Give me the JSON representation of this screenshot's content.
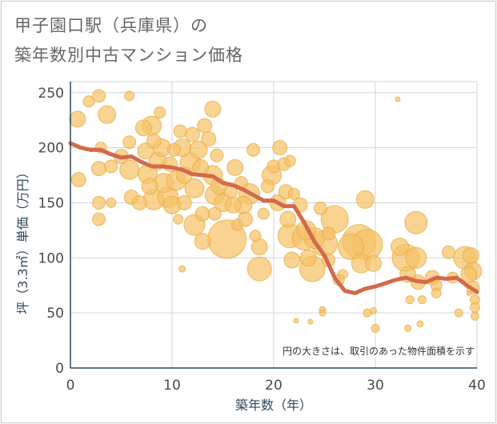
{
  "title_line1": "甲子園口駅（兵庫県）の",
  "title_line2": "築年数別中古マンション価格",
  "colors": {
    "bubble_fill": "#f5c266",
    "bubble_stroke": "#e9ad45",
    "line": "#d4694b",
    "grid": "#cfd6dc",
    "axis": "#2f4a5c"
  },
  "chart_data": {
    "type": "scatter",
    "xlabel": "築年数（年）",
    "ylabel": "坪（3.3㎡）単価（万円）",
    "xlim": [
      0,
      40
    ],
    "ylim": [
      0,
      260
    ],
    "xticks": [
      "0",
      "10",
      "20",
      "30",
      "40"
    ],
    "yticks": [
      "0",
      "50",
      "100",
      "150",
      "200",
      "250"
    ],
    "grid": true,
    "note": "円の大きさは、取引のあった物件面積を示す",
    "bubbles": [
      {
        "x": 0.7,
        "y": 226,
        "s": 10
      },
      {
        "x": 1.8,
        "y": 242,
        "s": 7
      },
      {
        "x": 2.8,
        "y": 247,
        "s": 8
      },
      {
        "x": 3.6,
        "y": 230,
        "s": 11
      },
      {
        "x": 5.8,
        "y": 247,
        "s": 6
      },
      {
        "x": 0.8,
        "y": 171,
        "s": 9
      },
      {
        "x": 2.8,
        "y": 181,
        "s": 9
      },
      {
        "x": 2.8,
        "y": 150,
        "s": 8
      },
      {
        "x": 2.8,
        "y": 135,
        "s": 8
      },
      {
        "x": 4.0,
        "y": 183,
        "s": 8
      },
      {
        "x": 4.0,
        "y": 150,
        "s": 6
      },
      {
        "x": 3.0,
        "y": 200,
        "s": 7
      },
      {
        "x": 5.0,
        "y": 192,
        "s": 9
      },
      {
        "x": 5.8,
        "y": 180,
        "s": 12
      },
      {
        "x": 5.8,
        "y": 205,
        "s": 8
      },
      {
        "x": 6.0,
        "y": 155,
        "s": 9
      },
      {
        "x": 6.8,
        "y": 150,
        "s": 9
      },
      {
        "x": 7.2,
        "y": 218,
        "s": 10
      },
      {
        "x": 7.4,
        "y": 197,
        "s": 10
      },
      {
        "x": 7.6,
        "y": 176,
        "s": 12
      },
      {
        "x": 8.0,
        "y": 220,
        "s": 12
      },
      {
        "x": 8.2,
        "y": 206,
        "s": 9
      },
      {
        "x": 7.8,
        "y": 165,
        "s": 10
      },
      {
        "x": 8.2,
        "y": 153,
        "s": 13
      },
      {
        "x": 8.6,
        "y": 188,
        "s": 11
      },
      {
        "x": 8.8,
        "y": 232,
        "s": 7
      },
      {
        "x": 9.0,
        "y": 200,
        "s": 11
      },
      {
        "x": 9.2,
        "y": 168,
        "s": 12
      },
      {
        "x": 9.6,
        "y": 155,
        "s": 13
      },
      {
        "x": 9.8,
        "y": 185,
        "s": 9
      },
      {
        "x": 10.0,
        "y": 148,
        "s": 11
      },
      {
        "x": 10.2,
        "y": 198,
        "s": 8
      },
      {
        "x": 10.4,
        "y": 170,
        "s": 12
      },
      {
        "x": 10.6,
        "y": 135,
        "s": 6
      },
      {
        "x": 10.8,
        "y": 215,
        "s": 8
      },
      {
        "x": 11.0,
        "y": 200,
        "s": 11
      },
      {
        "x": 11.2,
        "y": 175,
        "s": 10
      },
      {
        "x": 11.2,
        "y": 150,
        "s": 9
      },
      {
        "x": 11.0,
        "y": 90,
        "s": 4
      },
      {
        "x": 11.8,
        "y": 186,
        "s": 13
      },
      {
        "x": 12.0,
        "y": 212,
        "s": 9
      },
      {
        "x": 12.2,
        "y": 163,
        "s": 12
      },
      {
        "x": 12.2,
        "y": 130,
        "s": 13
      },
      {
        "x": 12.6,
        "y": 198,
        "s": 11
      },
      {
        "x": 12.8,
        "y": 182,
        "s": 10
      },
      {
        "x": 13.0,
        "y": 140,
        "s": 9
      },
      {
        "x": 13.0,
        "y": 115,
        "s": 10
      },
      {
        "x": 13.2,
        "y": 220,
        "s": 9
      },
      {
        "x": 13.6,
        "y": 208,
        "s": 9
      },
      {
        "x": 14.0,
        "y": 235,
        "s": 10
      },
      {
        "x": 14.0,
        "y": 175,
        "s": 12
      },
      {
        "x": 14.2,
        "y": 157,
        "s": 12
      },
      {
        "x": 14.2,
        "y": 140,
        "s": 8
      },
      {
        "x": 14.4,
        "y": 193,
        "s": 8
      },
      {
        "x": 14.6,
        "y": 165,
        "s": 10
      },
      {
        "x": 15.0,
        "y": 150,
        "s": 11
      },
      {
        "x": 15.4,
        "y": 117,
        "s": 24
      },
      {
        "x": 15.8,
        "y": 160,
        "s": 8
      },
      {
        "x": 16.0,
        "y": 148,
        "s": 10
      },
      {
        "x": 16.2,
        "y": 182,
        "s": 10
      },
      {
        "x": 16.4,
        "y": 130,
        "s": 7
      },
      {
        "x": 16.8,
        "y": 168,
        "s": 8
      },
      {
        "x": 17.0,
        "y": 148,
        "s": 11
      },
      {
        "x": 17.2,
        "y": 135,
        "s": 9
      },
      {
        "x": 17.6,
        "y": 158,
        "s": 13
      },
      {
        "x": 18.0,
        "y": 198,
        "s": 8
      },
      {
        "x": 18.2,
        "y": 120,
        "s": 7
      },
      {
        "x": 18.6,
        "y": 110,
        "s": 10
      },
      {
        "x": 18.6,
        "y": 90,
        "s": 15
      },
      {
        "x": 19.0,
        "y": 140,
        "s": 7
      },
      {
        "x": 19.4,
        "y": 165,
        "s": 8
      },
      {
        "x": 19.8,
        "y": 175,
        "s": 12
      },
      {
        "x": 20.0,
        "y": 183,
        "s": 8
      },
      {
        "x": 20.4,
        "y": 150,
        "s": 10
      },
      {
        "x": 20.6,
        "y": 200,
        "s": 9
      },
      {
        "x": 21.0,
        "y": 185,
        "s": 8
      },
      {
        "x": 21.2,
        "y": 160,
        "s": 9
      },
      {
        "x": 21.4,
        "y": 135,
        "s": 10
      },
      {
        "x": 21.6,
        "y": 120,
        "s": 15
      },
      {
        "x": 21.8,
        "y": 98,
        "s": 10
      },
      {
        "x": 21.6,
        "y": 188,
        "s": 7
      },
      {
        "x": 22.0,
        "y": 158,
        "s": 7
      },
      {
        "x": 22.2,
        "y": 43,
        "s": 3
      },
      {
        "x": 22.6,
        "y": 148,
        "s": 9
      },
      {
        "x": 23.0,
        "y": 118,
        "s": 15
      },
      {
        "x": 23.2,
        "y": 125,
        "s": 12
      },
      {
        "x": 23.4,
        "y": 100,
        "s": 10
      },
      {
        "x": 23.6,
        "y": 42,
        "s": 3
      },
      {
        "x": 23.8,
        "y": 90,
        "s": 16
      },
      {
        "x": 24.0,
        "y": 118,
        "s": 13
      },
      {
        "x": 24.6,
        "y": 145,
        "s": 8
      },
      {
        "x": 24.8,
        "y": 53,
        "s": 4
      },
      {
        "x": 24.8,
        "y": 50,
        "s": 4
      },
      {
        "x": 25.0,
        "y": 113,
        "s": 16
      },
      {
        "x": 25.4,
        "y": 122,
        "s": 8
      },
      {
        "x": 25.4,
        "y": 98,
        "s": 8
      },
      {
        "x": 26.0,
        "y": 135,
        "s": 17
      },
      {
        "x": 26.4,
        "y": 80,
        "s": 7
      },
      {
        "x": 26.8,
        "y": 85,
        "s": 6
      },
      {
        "x": 27.6,
        "y": 110,
        "s": 16
      },
      {
        "x": 28.4,
        "y": 115,
        "s": 21
      },
      {
        "x": 28.6,
        "y": 95,
        "s": 12
      },
      {
        "x": 29.0,
        "y": 153,
        "s": 11
      },
      {
        "x": 29.2,
        "y": 112,
        "s": 19
      },
      {
        "x": 29.8,
        "y": 95,
        "s": 10
      },
      {
        "x": 29.2,
        "y": 50,
        "s": 5
      },
      {
        "x": 29.8,
        "y": 52,
        "s": 4
      },
      {
        "x": 30.0,
        "y": 36,
        "s": 5
      },
      {
        "x": 32.2,
        "y": 244,
        "s": 3
      },
      {
        "x": 32.4,
        "y": 110,
        "s": 11
      },
      {
        "x": 33.0,
        "y": 100,
        "s": 17
      },
      {
        "x": 33.2,
        "y": 85,
        "s": 10
      },
      {
        "x": 33.4,
        "y": 62,
        "s": 5
      },
      {
        "x": 33.2,
        "y": 36,
        "s": 4
      },
      {
        "x": 34.0,
        "y": 132,
        "s": 14
      },
      {
        "x": 34.0,
        "y": 100,
        "s": 13
      },
      {
        "x": 34.2,
        "y": 78,
        "s": 9
      },
      {
        "x": 34.6,
        "y": 62,
        "s": 5
      },
      {
        "x": 34.4,
        "y": 40,
        "s": 4
      },
      {
        "x": 35.6,
        "y": 82,
        "s": 9
      },
      {
        "x": 36.0,
        "y": 75,
        "s": 7
      },
      {
        "x": 36.0,
        "y": 68,
        "s": 6
      },
      {
        "x": 37.2,
        "y": 105,
        "s": 8
      },
      {
        "x": 37.6,
        "y": 82,
        "s": 7
      },
      {
        "x": 38.2,
        "y": 50,
        "s": 5
      },
      {
        "x": 38.8,
        "y": 100,
        "s": 14
      },
      {
        "x": 39.2,
        "y": 85,
        "s": 10
      },
      {
        "x": 39.2,
        "y": 68,
        "s": 3
      },
      {
        "x": 39.4,
        "y": 102,
        "s": 10
      },
      {
        "x": 39.6,
        "y": 88,
        "s": 11
      },
      {
        "x": 39.6,
        "y": 73,
        "s": 8
      },
      {
        "x": 39.8,
        "y": 62,
        "s": 6
      },
      {
        "x": 39.8,
        "y": 55,
        "s": 6
      },
      {
        "x": 39.8,
        "y": 47,
        "s": 5
      }
    ],
    "trend": [
      [
        0,
        204
      ],
      [
        1,
        200
      ],
      [
        2,
        198
      ],
      [
        3,
        198
      ],
      [
        4,
        194
      ],
      [
        5,
        191
      ],
      [
        6,
        192
      ],
      [
        7,
        187
      ],
      [
        8,
        183
      ],
      [
        9,
        183
      ],
      [
        10,
        182
      ],
      [
        11,
        180
      ],
      [
        12,
        176
      ],
      [
        13,
        175
      ],
      [
        14,
        174
      ],
      [
        15,
        168
      ],
      [
        16,
        166
      ],
      [
        17,
        162
      ],
      [
        18,
        157
      ],
      [
        19,
        152
      ],
      [
        20,
        152
      ],
      [
        21,
        147
      ],
      [
        22,
        147
      ],
      [
        23,
        132
      ],
      [
        24,
        115
      ],
      [
        25,
        102
      ],
      [
        26,
        82
      ],
      [
        27,
        70
      ],
      [
        28,
        68
      ],
      [
        29,
        72
      ],
      [
        30,
        74
      ],
      [
        31,
        77
      ],
      [
        32,
        80
      ],
      [
        33,
        82
      ],
      [
        34,
        79
      ],
      [
        35,
        78
      ],
      [
        36,
        82
      ],
      [
        37,
        81
      ],
      [
        38,
        82
      ],
      [
        39,
        75
      ],
      [
        40,
        69
      ]
    ]
  }
}
